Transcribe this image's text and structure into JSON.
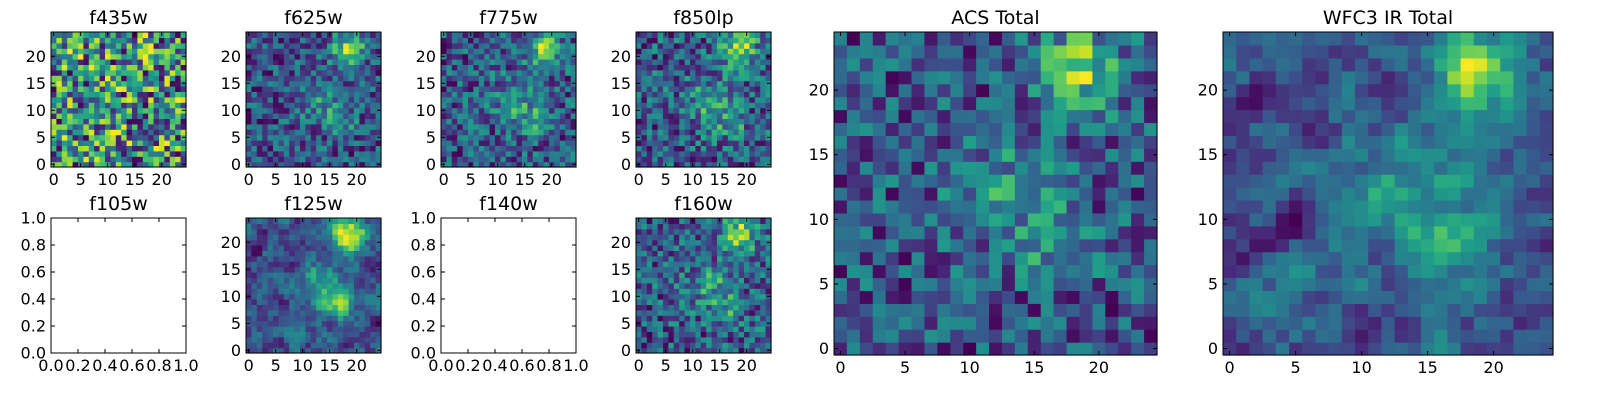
{
  "figure": {
    "background": "#ffffff"
  },
  "chart_data": [
    {
      "type": "heatmap",
      "title": "f435w",
      "grid_size": 25,
      "xlim": [
        -0.5,
        24.5
      ],
      "ylim": [
        -0.5,
        24.5
      ],
      "xticks": [
        0,
        5,
        10,
        15,
        20
      ],
      "xtick_labels": [
        "0",
        "5",
        "10",
        "15",
        "20"
      ],
      "yticks": [
        0,
        5,
        10,
        15,
        20
      ],
      "ytick_labels": [
        "0",
        "5",
        "10",
        "15",
        "20"
      ],
      "colormap": "viridis",
      "pattern": "uniform-noise",
      "has_data": true
    },
    {
      "type": "heatmap",
      "title": "f625w",
      "grid_size": 25,
      "xlim": [
        -0.5,
        24.5
      ],
      "ylim": [
        -0.5,
        24.5
      ],
      "xticks": [
        0,
        5,
        10,
        15,
        20
      ],
      "xtick_labels": [
        "0",
        "5",
        "10",
        "15",
        "20"
      ],
      "yticks": [
        0,
        5,
        10,
        15,
        20
      ],
      "ytick_labels": [
        "0",
        "5",
        "10",
        "15",
        "20"
      ],
      "colormap": "viridis",
      "pattern": "noise-with-source",
      "has_data": true
    },
    {
      "type": "heatmap",
      "title": "f775w",
      "grid_size": 25,
      "xlim": [
        -0.5,
        24.5
      ],
      "ylim": [
        -0.5,
        24.5
      ],
      "xticks": [
        0,
        5,
        10,
        15,
        20
      ],
      "xtick_labels": [
        "0",
        "5",
        "10",
        "15",
        "20"
      ],
      "yticks": [
        0,
        5,
        10,
        15,
        20
      ],
      "ytick_labels": [
        "0",
        "5",
        "10",
        "15",
        "20"
      ],
      "colormap": "viridis",
      "pattern": "noise-with-source",
      "has_data": true
    },
    {
      "type": "heatmap",
      "title": "f850lp",
      "grid_size": 25,
      "xlim": [
        -0.5,
        24.5
      ],
      "ylim": [
        -0.5,
        24.5
      ],
      "xticks": [
        0,
        5,
        10,
        15,
        20
      ],
      "xtick_labels": [
        "0",
        "5",
        "10",
        "15",
        "20"
      ],
      "yticks": [
        0,
        5,
        10,
        15,
        20
      ],
      "ytick_labels": [
        "0",
        "5",
        "10",
        "15",
        "20"
      ],
      "colormap": "viridis",
      "pattern": "noise-with-source",
      "has_data": true
    },
    {
      "type": "heatmap",
      "title": "ACS Total",
      "grid_size": 25,
      "xlim": [
        -0.5,
        24.5
      ],
      "ylim": [
        -0.5,
        24.5
      ],
      "xticks": [
        0,
        5,
        10,
        15,
        20
      ],
      "xtick_labels": [
        "0",
        "5",
        "10",
        "15",
        "20"
      ],
      "yticks": [
        0,
        5,
        10,
        15,
        20
      ],
      "ytick_labels": [
        "0",
        "5",
        "10",
        "15",
        "20"
      ],
      "colormap": "viridis",
      "pattern": "noise-with-source",
      "has_data": true
    },
    {
      "type": "heatmap",
      "title": "WFC3 IR Total",
      "grid_size": 25,
      "xlim": [
        -0.5,
        24.5
      ],
      "ylim": [
        -0.5,
        24.5
      ],
      "xticks": [
        0,
        5,
        10,
        15,
        20
      ],
      "xtick_labels": [
        "0",
        "5",
        "10",
        "15",
        "20"
      ],
      "yticks": [
        0,
        5,
        10,
        15,
        20
      ],
      "ytick_labels": [
        "0",
        "5",
        "10",
        "15",
        "20"
      ],
      "colormap": "viridis",
      "pattern": "smooth-with-source",
      "has_data": true
    },
    {
      "type": "heatmap",
      "title": "f105w",
      "has_data": false,
      "xlim": [
        0.0,
        1.0
      ],
      "ylim": [
        0.0,
        1.0
      ],
      "xticks": [
        0.0,
        0.2,
        0.4,
        0.6,
        0.8,
        1.0
      ],
      "xtick_labels": [
        "0.0",
        "0.2",
        "0.4",
        "0.6",
        "0.8",
        "1.0"
      ],
      "yticks": [
        0.0,
        0.2,
        0.4,
        0.6,
        0.8,
        1.0
      ],
      "ytick_labels": [
        "0.0",
        "0.2",
        "0.4",
        "0.6",
        "0.8",
        "1.0"
      ]
    },
    {
      "type": "heatmap",
      "title": "f125w",
      "grid_size": 25,
      "xlim": [
        -0.5,
        24.5
      ],
      "ylim": [
        -0.5,
        24.5
      ],
      "xticks": [
        0,
        5,
        10,
        15,
        20
      ],
      "xtick_labels": [
        "0",
        "5",
        "10",
        "15",
        "20"
      ],
      "yticks": [
        0,
        5,
        10,
        15,
        20
      ],
      "ytick_labels": [
        "0",
        "5",
        "10",
        "15",
        "20"
      ],
      "colormap": "viridis",
      "pattern": "smooth-with-source",
      "has_data": true
    },
    {
      "type": "heatmap",
      "title": "f140w",
      "has_data": false,
      "xlim": [
        0.0,
        1.0
      ],
      "ylim": [
        0.0,
        1.0
      ],
      "xticks": [
        0.0,
        0.2,
        0.4,
        0.6,
        0.8,
        1.0
      ],
      "xtick_labels": [
        "0.0",
        "0.2",
        "0.4",
        "0.6",
        "0.8",
        "1.0"
      ],
      "yticks": [
        0.0,
        0.2,
        0.4,
        0.6,
        0.8,
        1.0
      ],
      "ytick_labels": [
        "0.0",
        "0.2",
        "0.4",
        "0.6",
        "0.8",
        "1.0"
      ]
    },
    {
      "type": "heatmap",
      "title": "f160w",
      "grid_size": 25,
      "xlim": [
        -0.5,
        24.5
      ],
      "ylim": [
        -0.5,
        24.5
      ],
      "xticks": [
        0,
        5,
        10,
        15,
        20
      ],
      "xtick_labels": [
        "0",
        "5",
        "10",
        "15",
        "20"
      ],
      "yticks": [
        0,
        5,
        10,
        15,
        20
      ],
      "ytick_labels": [
        "0",
        "5",
        "10",
        "15",
        "20"
      ],
      "colormap": "viridis",
      "pattern": "noise-with-source",
      "has_data": true
    }
  ]
}
